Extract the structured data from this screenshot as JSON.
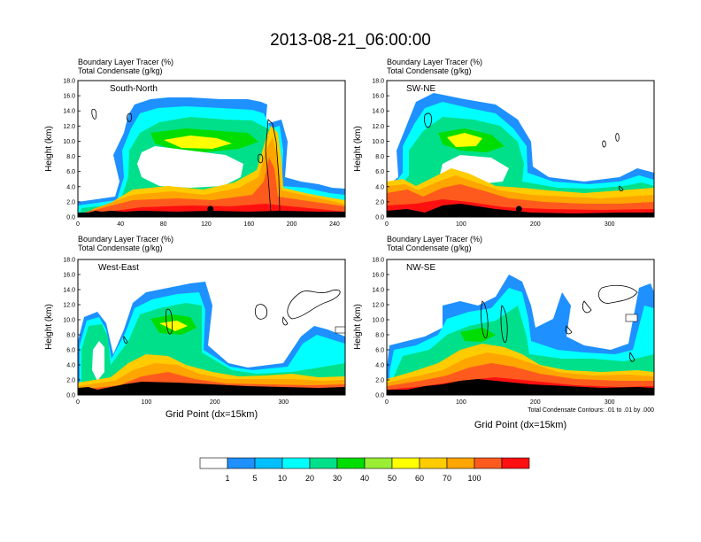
{
  "figure_title": "2013-08-21_06:00:00",
  "chart_data": [
    {
      "type": "heatmap",
      "field_label": "Boundary Layer Tracer   (%)",
      "contour_label": "Total Condensate   (g/kg)",
      "cross_section": "South-North",
      "ylabel": "Height (km)",
      "xlabel": "",
      "ylim": [
        0,
        18
      ],
      "xlim": [
        0,
        250
      ],
      "xticks": [
        "0",
        "40",
        "80",
        "120",
        "160",
        "200",
        "240"
      ],
      "yticks": [
        "0.0",
        "2.0",
        "4.0",
        "6.0",
        "8.0",
        "10.0",
        "12.0",
        "14.0",
        "16.0",
        "18.0"
      ],
      "marker_x": 124,
      "contour_note": ""
    },
    {
      "type": "heatmap",
      "field_label": "Boundary Layer Tracer   (%)",
      "contour_label": "Total Condensate   (g/kg)",
      "cross_section": "SW-NE",
      "ylabel": "Height (km)",
      "xlabel": "",
      "ylim": [
        0,
        18
      ],
      "xlim": [
        0,
        360
      ],
      "xticks": [
        "0",
        "100",
        "200",
        "300"
      ],
      "yticks": [
        "0.0",
        "2.0",
        "4.0",
        "6.0",
        "8.0",
        "10.0",
        "12.0",
        "14.0",
        "16.0",
        "18.0"
      ],
      "marker_x": 178,
      "contour_note": ""
    },
    {
      "type": "heatmap",
      "field_label": "Boundary Layer Tracer   (%)",
      "contour_label": "Total Condensate   (g/kg)",
      "cross_section": "West-East",
      "ylabel": "Height (km)",
      "xlabel": "Grid Point (dx=15km)",
      "ylim": [
        0,
        18
      ],
      "xlim": [
        0,
        390
      ],
      "xticks": [
        "0",
        "100",
        "200",
        "300"
      ],
      "yticks": [
        "0.0",
        "2.0",
        "4.0",
        "6.0",
        "8.0",
        "10.0",
        "12.0",
        "14.0",
        "16.0",
        "18.0"
      ],
      "marker_x": 185,
      "contour_note": ""
    },
    {
      "type": "heatmap",
      "field_label": "Boundary Layer Tracer   (%)",
      "contour_label": "Total Condensate   (g/kg)",
      "cross_section": "NW-SE",
      "ylabel": "Height (km)",
      "xlabel": "Grid Point (dx=15km)",
      "ylim": [
        0,
        18
      ],
      "xlim": [
        0,
        360
      ],
      "xticks": [
        "0",
        "100",
        "200",
        "300"
      ],
      "yticks": [
        "0.0",
        "2.0",
        "4.0",
        "6.0",
        "8.0",
        "10.0",
        "12.0",
        "14.0",
        "16.0",
        "18.0"
      ],
      "marker_x": 178,
      "contour_note": "Total Condensate Contours: .01 to .01 by .000"
    }
  ],
  "colorbar": {
    "labels": [
      "1",
      "5",
      "10",
      "20",
      "30",
      "40",
      "50",
      "60",
      "70",
      "100"
    ],
    "colors": [
      "#ffffff",
      "#1e90ff",
      "#00bfff",
      "#00ffff",
      "#00e08a",
      "#00dd00",
      "#99ee33",
      "#ffff00",
      "#ffcc00",
      "#ffa500",
      "#ff5a1e",
      "#ff1010"
    ]
  }
}
